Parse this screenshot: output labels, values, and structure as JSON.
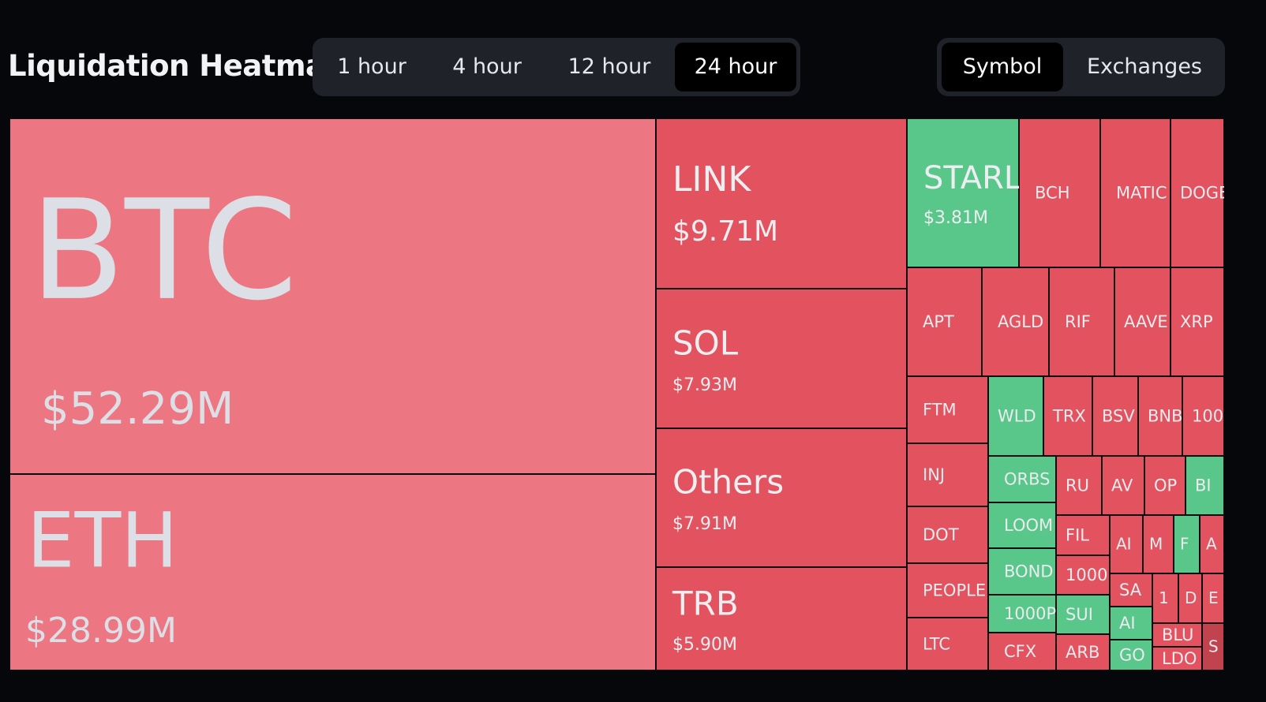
{
  "header": {
    "title": "Liquidation Heatmap"
  },
  "time_tabs": [
    {
      "label": "1 hour",
      "active": false
    },
    {
      "label": "4 hour",
      "active": false
    },
    {
      "label": "12 hour",
      "active": false
    },
    {
      "label": "24 hour",
      "active": true
    }
  ],
  "view_tabs": [
    {
      "label": "Symbol",
      "active": true
    },
    {
      "label": "Exchanges",
      "active": false
    }
  ],
  "treemap": {
    "tiles": [
      {
        "label": "BTC",
        "value": "$52.29M",
        "color": "#ec7682"
      },
      {
        "label": "ETH",
        "value": "$28.99M",
        "color": "#ec7682"
      },
      {
        "label": "LINK",
        "value": "$9.71M",
        "color": "#e3535f"
      },
      {
        "label": "SOL",
        "value": "$7.93M",
        "color": "#e3535f"
      },
      {
        "label": "Others",
        "value": "$7.91M",
        "color": "#e3535f"
      },
      {
        "label": "TRB",
        "value": "$5.90M",
        "color": "#e3535f"
      },
      {
        "label": "STARL",
        "value": "$3.81M",
        "color": "#5ac78a"
      },
      {
        "label": "BCH",
        "color": "#e3535f"
      },
      {
        "label": "MATIC",
        "color": "#e3535f"
      },
      {
        "label": "DOGE",
        "color": "#e3535f"
      },
      {
        "label": "APT",
        "color": "#e3535f"
      },
      {
        "label": "AGLD",
        "color": "#e3535f"
      },
      {
        "label": "RIF",
        "color": "#e3535f"
      },
      {
        "label": "AAVE",
        "color": "#e3535f"
      },
      {
        "label": "XRP",
        "color": "#e3535f"
      },
      {
        "label": "FTM",
        "color": "#e3535f"
      },
      {
        "label": "INJ",
        "color": "#e3535f"
      },
      {
        "label": "DOT",
        "color": "#e3535f"
      },
      {
        "label": "PEOPLE",
        "color": "#e3535f"
      },
      {
        "label": "LTC",
        "color": "#e3535f"
      },
      {
        "label": "WLD",
        "color": "#5ac78a"
      },
      {
        "label": "TRX",
        "color": "#e3535f"
      },
      {
        "label": "BSV",
        "color": "#e3535f"
      },
      {
        "label": "BNB",
        "color": "#e3535f"
      },
      {
        "label": "100",
        "color": "#e3535f"
      },
      {
        "label": "ORBS",
        "color": "#5ac78a"
      },
      {
        "label": "LOOM",
        "color": "#5ac78a"
      },
      {
        "label": "BOND",
        "color": "#5ac78a"
      },
      {
        "label": "1000P",
        "color": "#5ac78a"
      },
      {
        "label": "CFX",
        "color": "#e3535f"
      },
      {
        "label": "RU",
        "color": "#e3535f"
      },
      {
        "label": "AV",
        "color": "#e3535f"
      },
      {
        "label": "OP",
        "color": "#e3535f"
      },
      {
        "label": "BI",
        "color": "#5ac78a"
      },
      {
        "label": "FIL",
        "color": "#e3535f"
      },
      {
        "label": "1000",
        "color": "#e3535f"
      },
      {
        "label": "SUI",
        "color": "#5ac78a"
      },
      {
        "label": "ARB",
        "color": "#e3535f"
      },
      {
        "label": "AI",
        "color": "#e3535f"
      },
      {
        "label": "M",
        "color": "#e3535f"
      },
      {
        "label": "F",
        "color": "#5ac78a"
      },
      {
        "label": "A",
        "color": "#e3535f"
      },
      {
        "label": "SA",
        "color": "#e3535f"
      },
      {
        "label": "AI",
        "color": "#5ac78a"
      },
      {
        "label": "GO",
        "color": "#5ac78a"
      },
      {
        "label": "1",
        "color": "#e3535f"
      },
      {
        "label": "D",
        "color": "#e3535f"
      },
      {
        "label": "E",
        "color": "#e3535f"
      },
      {
        "label": "BLU",
        "color": "#e3535f"
      },
      {
        "label": "LDO",
        "color": "#e3535f"
      },
      {
        "label": "S",
        "color": "#c0434e"
      }
    ]
  }
}
